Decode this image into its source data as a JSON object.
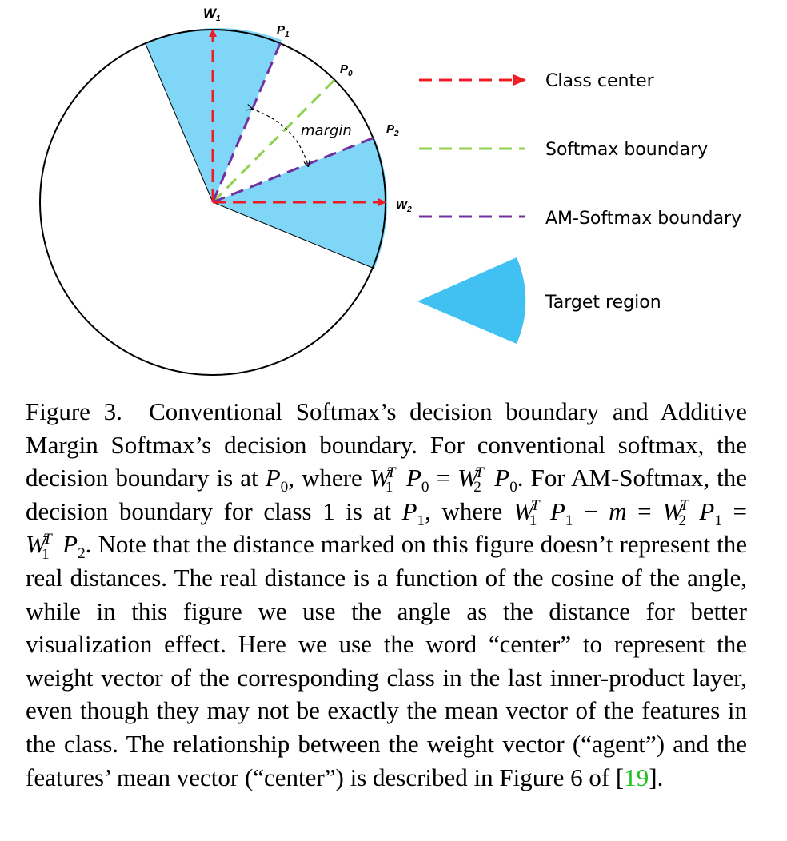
{
  "figure": {
    "labels": {
      "w1": "W",
      "w1_sub": "1",
      "p1": "P",
      "p1_sub": "1",
      "p0": "P",
      "p0_sub": "0",
      "p2": "P",
      "p2_sub": "2",
      "w2": "W",
      "w2_sub": "2",
      "margin": "margin"
    },
    "legend": {
      "class_center": "Class center",
      "softmax_boundary": "Softmax boundary",
      "am_softmax_boundary": "AM-Softmax boundary",
      "target_region": "Target region"
    },
    "colors": {
      "class_center": "#ee1c24",
      "softmax_boundary": "#8fd14f",
      "am_softmax_boundary": "#7030a0",
      "target_region": "#7fd6f7",
      "legend_target_region": "#41c1f2"
    }
  },
  "caption": {
    "figure_label": "Figure 3.",
    "text_1": "Conventional Softmax’s decision boundary and Additive Margin Softmax’s decision boundary. For conventional softmax, the decision boundary is at",
    "text_2": ", where",
    "text_3": ". For AM-Softmax, the decision boundary for class 1 is at",
    "text_4": ", where",
    "text_5": ". Note that the distance marked on this figure doesn’t represent the real distances. The real distance is a function of the cosine of the angle, while in this figure we use the angle as the distance for better visualization effect. Here we use the word “center” to represent the weight vector of the corresponding class in the last inner-product layer, even though they may not be exactly the mean vector of the features in the class. The relationship between the weight vector (“agent”) and the features’ mean vector (“center”) is described in Figure 6 of [",
    "ref": "19",
    "text_6": "]."
  }
}
